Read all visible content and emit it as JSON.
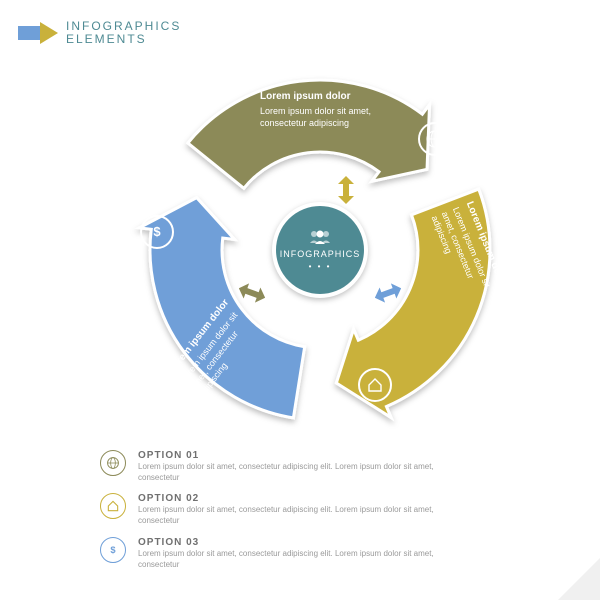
{
  "header": {
    "line1": "INFOGRAPHICS",
    "line2": "ELEMENTS",
    "color": "#4e8a93",
    "arrow_tail_color": "#6f9fd8",
    "arrow_head_color": "#c9b13b"
  },
  "cycle": {
    "center": {
      "label": "INFOGRAPHICS",
      "bg": "#4e8a93",
      "dots": "• • •"
    },
    "segments": [
      {
        "color": "#8c8a58",
        "stroke": "#ffffff",
        "title": "Lorem ipsum dolor",
        "desc": "Lorem ipsum dolor sit amet, consectetur adipiscing",
        "icon": "globe"
      },
      {
        "color": "#c9b13b",
        "stroke": "#ffffff",
        "title": "Lorem ipsum dolor",
        "desc": "Lorem ipsum dolor sit amet, consectetur adipiscing",
        "icon": "home"
      },
      {
        "color": "#6f9fd8",
        "stroke": "#ffffff",
        "title": "Lorem ipsum dolor",
        "desc": "Lorem ipsum dolor sit amet, consectetur adipiscing",
        "icon": "dollar"
      }
    ],
    "connectors": [
      {
        "color": "#c9b13b"
      },
      {
        "color": "#6f9fd8"
      },
      {
        "color": "#8c8a58"
      }
    ],
    "outer_radius": 170,
    "inner_radius": 98,
    "gap_deg": 18
  },
  "options": [
    {
      "title": "OPTION 01",
      "desc": "Lorem ipsum dolor sit amet, consectetur adipiscing elit. Lorem ipsum dolor sit amet, consectetur",
      "color": "#8c8a58",
      "icon": "globe"
    },
    {
      "title": "OPTION 02",
      "desc": "Lorem ipsum dolor sit amet, consectetur adipiscing elit. Lorem ipsum dolor sit amet, consectetur",
      "color": "#c9b13b",
      "icon": "home"
    },
    {
      "title": "OPTION 03",
      "desc": "Lorem ipsum dolor sit amet, consectetur adipiscing elit. Lorem ipsum dolor sit amet, consectetur",
      "color": "#6f9fd8",
      "icon": "dollar"
    }
  ]
}
